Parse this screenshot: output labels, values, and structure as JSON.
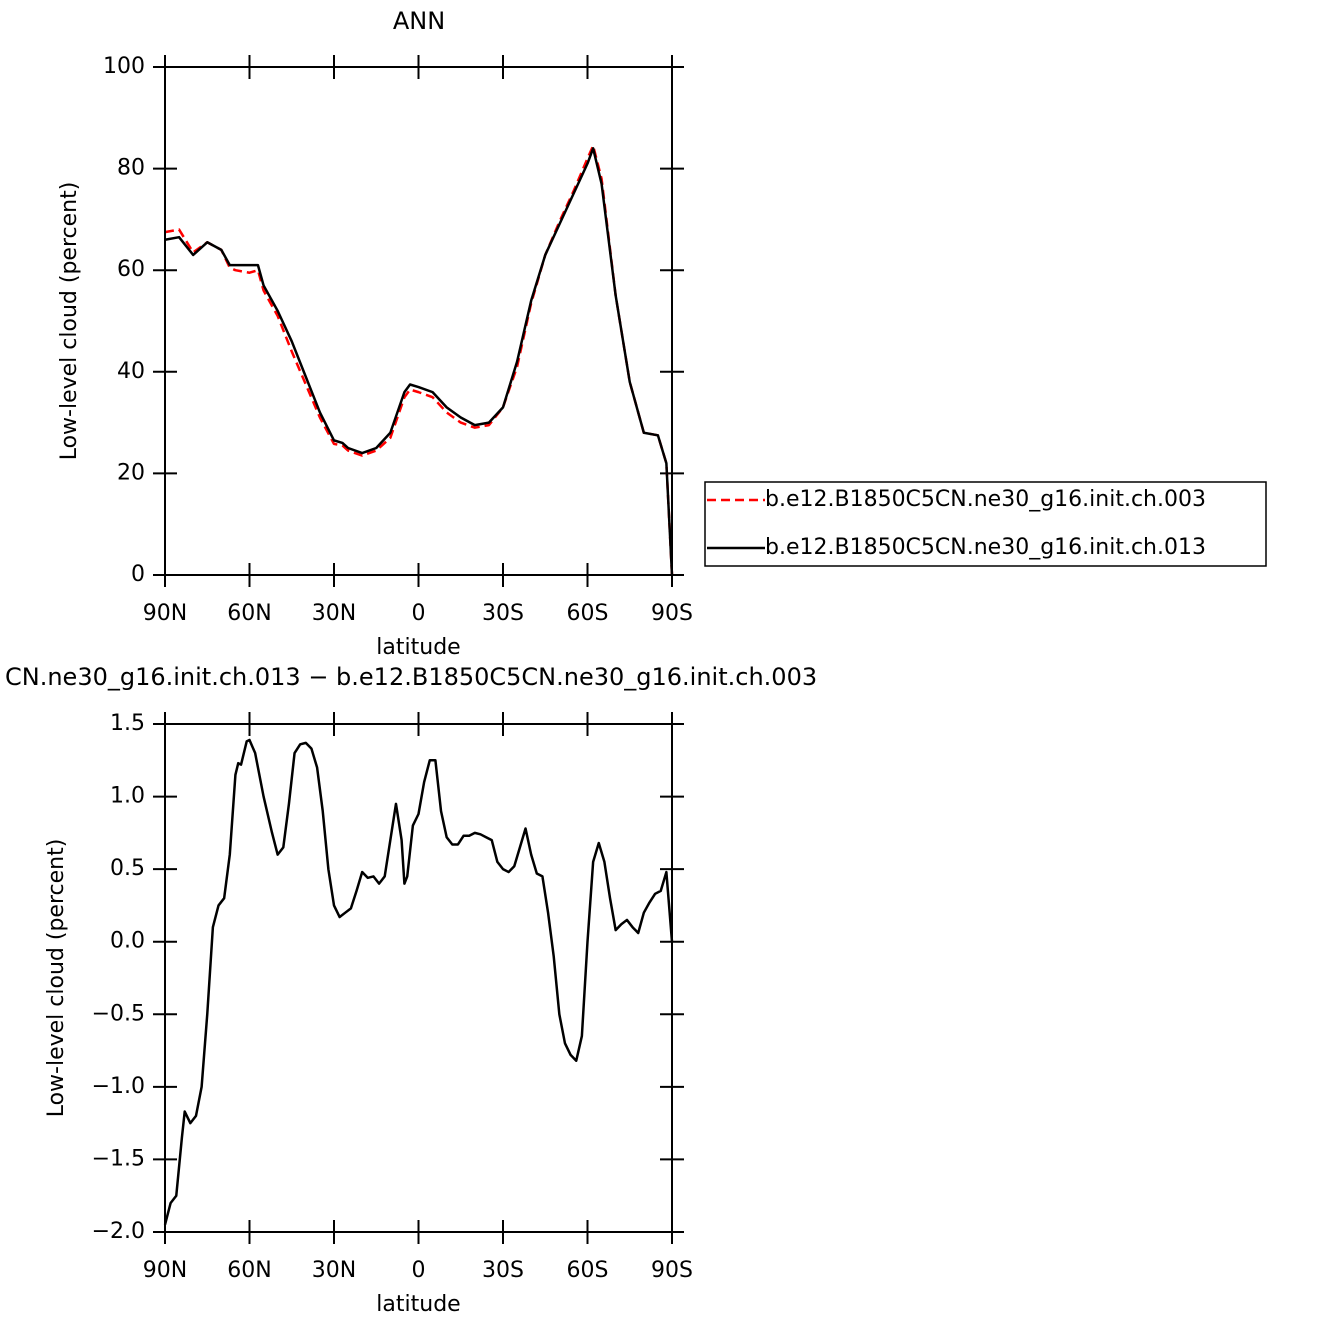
{
  "chart_data": [
    {
      "type": "line",
      "title": "ANN",
      "xlabel": "latitude",
      "ylabel": "Low-level cloud (percent)",
      "x": [
        90,
        85,
        80,
        75,
        70,
        67,
        65,
        60,
        57,
        55,
        50,
        45,
        40,
        35,
        30,
        27,
        25,
        20,
        15,
        10,
        5,
        3,
        0,
        -5,
        -10,
        -15,
        -20,
        -25,
        -30,
        -35,
        -40,
        -45,
        -50,
        -55,
        -60,
        -62,
        -65,
        -70,
        -75,
        -80,
        -85,
        -88,
        -90
      ],
      "series": [
        {
          "name": "b.e12.B1850C5CN.ne30_g16.init.ch.003",
          "color": "#ff0000",
          "line_style": "dashed",
          "values": [
            67.5,
            68,
            63.5,
            65.5,
            64,
            60.5,
            60,
            59.5,
            60,
            56,
            51,
            44,
            37.5,
            31,
            25.8,
            25.5,
            24.5,
            23.5,
            24.5,
            27,
            35,
            36.5,
            36,
            35,
            32,
            30,
            29,
            29.5,
            33,
            41,
            53.5,
            63,
            69.5,
            75.5,
            82,
            84.5,
            78,
            55,
            38,
            28,
            27.5,
            22,
            0
          ]
        },
        {
          "name": "b.e12.B1850C5CN.ne30_g16.init.ch.013",
          "color": "#000000",
          "line_style": "solid",
          "values": [
            66,
            66.5,
            63,
            65.5,
            64,
            61,
            61,
            61,
            61,
            57,
            52,
            46,
            39,
            32,
            26.5,
            26,
            25,
            24,
            25,
            28,
            36,
            37.5,
            37,
            36,
            33,
            31,
            29.5,
            30,
            33,
            42,
            54,
            63,
            69,
            75,
            81,
            84,
            77,
            55,
            38,
            28,
            27.5,
            22,
            0
          ]
        }
      ],
      "xlim": [
        90,
        -90
      ],
      "xticks": [
        {
          "value": 90,
          "label": "90N"
        },
        {
          "value": 60,
          "label": "60N"
        },
        {
          "value": 30,
          "label": "30N"
        },
        0,
        {
          "value": -30,
          "label": "30S"
        },
        {
          "value": -60,
          "label": "60S"
        },
        {
          "value": -90,
          "label": "90S"
        }
      ],
      "ylim": [
        0,
        100
      ],
      "yticks": [
        0,
        20,
        40,
        60,
        80,
        100
      ],
      "legend": "right"
    },
    {
      "type": "line",
      "title": "CN.ne30_g16.init.ch.013 − b.e12.B1850C5CN.ne30_g16.init.ch.003",
      "xlabel": "latitude",
      "ylabel": "Low-level cloud (percent)",
      "x": [
        90,
        88,
        86,
        84,
        83,
        81,
        79,
        77,
        75,
        73,
        71,
        69,
        67,
        65,
        64,
        63,
        61,
        60,
        58,
        55,
        52,
        50,
        48,
        46,
        44,
        42,
        40,
        38,
        36,
        34,
        32,
        30,
        28,
        26,
        24,
        22,
        20,
        18,
        16,
        14,
        12,
        10,
        8,
        6,
        5,
        4,
        2,
        0,
        -2,
        -4,
        -6,
        -8,
        -10,
        -12,
        -14,
        -16,
        -18,
        -20,
        -22,
        -24,
        -26,
        -28,
        -30,
        -32,
        -34,
        -36,
        -38,
        -40,
        -42,
        -44,
        -46,
        -48,
        -50,
        -52,
        -54,
        -56,
        -58,
        -60,
        -62,
        -64,
        -66,
        -68,
        -70,
        -72,
        -74,
        -76,
        -78,
        -80,
        -82,
        -84,
        -86,
        -88,
        -90
      ],
      "series": [
        {
          "color": "#000000",
          "line_style": "solid",
          "values": [
            -1.95,
            -1.8,
            -1.75,
            -1.35,
            -1.17,
            -1.25,
            -1.2,
            -1.0,
            -0.5,
            0.1,
            0.25,
            0.3,
            0.6,
            1.15,
            1.23,
            1.22,
            1.38,
            1.39,
            1.3,
            1.0,
            0.75,
            0.6,
            0.65,
            0.95,
            1.3,
            1.36,
            1.37,
            1.33,
            1.2,
            0.9,
            0.5,
            0.25,
            0.17,
            0.2,
            0.23,
            0.35,
            0.48,
            0.44,
            0.45,
            0.4,
            0.45,
            0.7,
            0.95,
            0.7,
            0.4,
            0.45,
            0.8,
            0.88,
            1.1,
            1.25,
            1.25,
            0.9,
            0.72,
            0.67,
            0.67,
            0.73,
            0.73,
            0.75,
            0.74,
            0.72,
            0.7,
            0.55,
            0.5,
            0.48,
            0.52,
            0.65,
            0.78,
            0.6,
            0.47,
            0.45,
            0.2,
            -0.1,
            -0.5,
            -0.7,
            -0.78,
            -0.82,
            -0.65,
            0.0,
            0.55,
            0.68,
            0.55,
            0.3,
            0.08,
            0.12,
            0.15,
            0.1,
            0.06,
            0.2,
            0.27,
            0.33,
            0.35,
            0.48,
            0.0
          ]
        }
      ],
      "xlim": [
        90,
        -90
      ],
      "xticks": [
        {
          "value": 90,
          "label": "90N"
        },
        {
          "value": 60,
          "label": "60N"
        },
        {
          "value": 30,
          "label": "30N"
        },
        0,
        {
          "value": -30,
          "label": "30S"
        },
        {
          "value": -60,
          "label": "60S"
        },
        {
          "value": -90,
          "label": "90S"
        }
      ],
      "ylim": [
        -2,
        1.5
      ],
      "yticks": [
        {
          "value": -2,
          "label": "−2.0"
        },
        {
          "value": -1.5,
          "label": "−1.5"
        },
        {
          "value": -1,
          "label": "−1.0"
        },
        {
          "value": -0.5,
          "label": "−0.5"
        },
        {
          "value": 0,
          "label": "0.0"
        },
        {
          "value": 0.5,
          "label": "0.5"
        },
        {
          "value": 1,
          "label": "1.0"
        },
        1.5
      ]
    }
  ]
}
